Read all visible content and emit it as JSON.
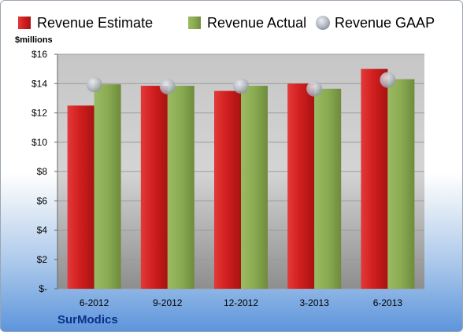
{
  "chart_data": {
    "type": "bar",
    "categories": [
      "6-2012",
      "9-2012",
      "12-2012",
      "3-2013",
      "6-2013"
    ],
    "series": [
      {
        "name": "Revenue Estimate",
        "kind": "bar",
        "color": "#cc1f1f",
        "values": [
          12.5,
          13.85,
          13.5,
          14.0,
          15.0
        ]
      },
      {
        "name": "Revenue Actual",
        "kind": "bar",
        "color": "#8aab52",
        "values": [
          13.95,
          13.85,
          13.85,
          13.65,
          14.3
        ]
      },
      {
        "name": "Revenue GAAP",
        "kind": "marker",
        "color": "#b8bec6",
        "values": [
          13.95,
          13.8,
          13.85,
          13.65,
          14.25
        ]
      }
    ],
    "unit_label": "$millions",
    "ylim": [
      0,
      16
    ],
    "yticks": [
      0,
      2,
      4,
      6,
      8,
      10,
      12,
      14,
      16
    ],
    "ytick_labels": [
      "$-",
      "$2",
      "$4",
      "$6",
      "$8",
      "$10",
      "$12",
      "$14",
      "$16"
    ],
    "grid": true,
    "legend_position": "top"
  },
  "brand": "SurModics"
}
